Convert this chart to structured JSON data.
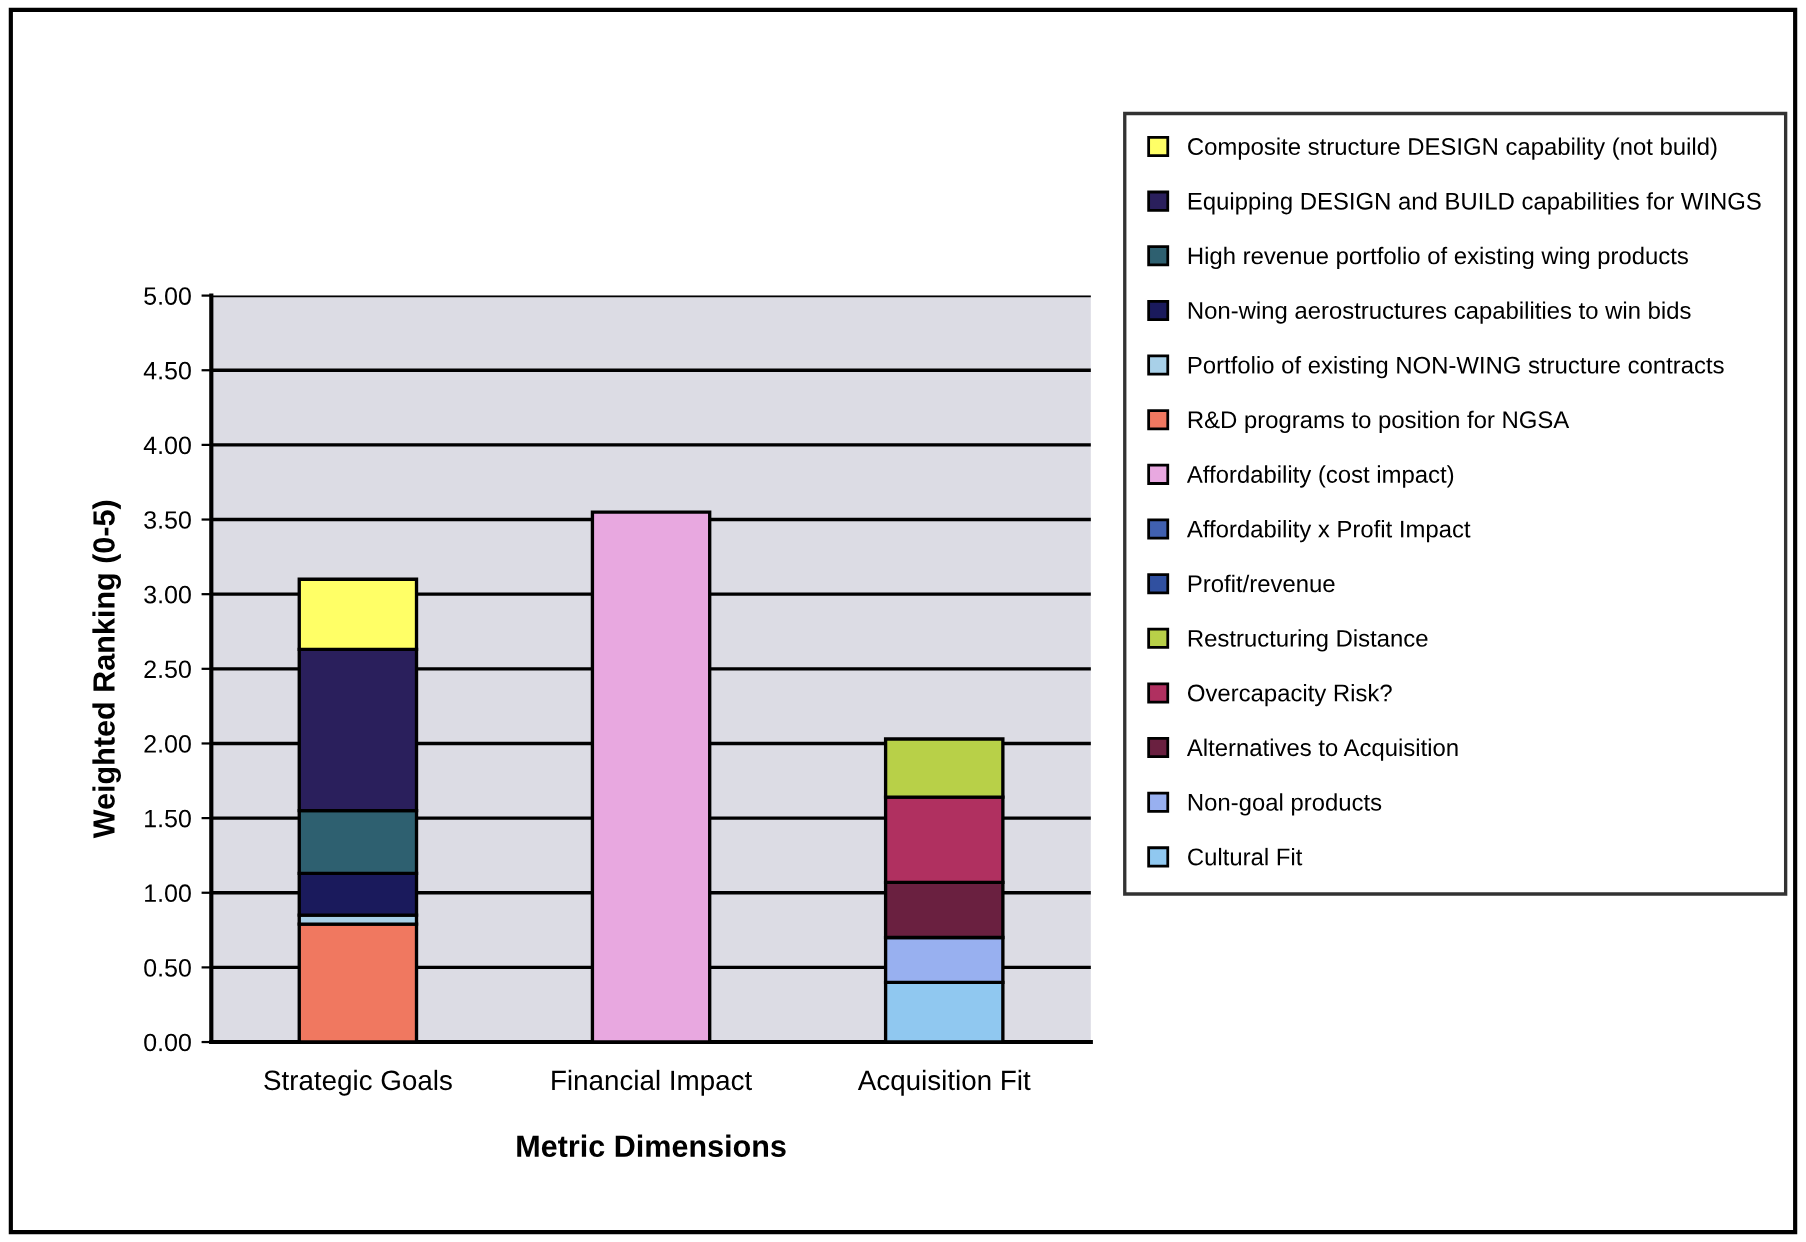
{
  "chart_data": {
    "type": "bar",
    "stacked": true,
    "xlabel": "Metric Dimensions",
    "ylabel": "Weighted Ranking (0-5)",
    "categories": [
      "Strategic Goals",
      "Financial Impact",
      "Acquisition Fit"
    ],
    "series": [
      {
        "name": "Cultural Fit",
        "color": "#90c8f0",
        "values": [
          null,
          null,
          0.4
        ]
      },
      {
        "name": "Non-goal products",
        "color": "#98b0f0",
        "values": [
          null,
          null,
          0.3
        ]
      },
      {
        "name": "Alternatives to Acquisition",
        "color": "#6a2040",
        "values": [
          null,
          null,
          0.37
        ]
      },
      {
        "name": "Overcapacity Risk?",
        "color": "#b03060",
        "values": [
          null,
          null,
          0.57
        ]
      },
      {
        "name": "Restructuring Distance",
        "color": "#b8d048",
        "values": [
          null,
          null,
          0.39
        ]
      },
      {
        "name": "Profit/revenue",
        "color": "#3050a0",
        "values": [
          null,
          null,
          null
        ]
      },
      {
        "name": "Affordability x Profit Impact",
        "color": "#4060b0",
        "values": [
          null,
          null,
          null
        ]
      },
      {
        "name": "Affordability (cost impact)",
        "color": "#e8a8e0",
        "values": [
          null,
          3.55,
          null
        ]
      },
      {
        "name": "R&D programs to position for NGSA",
        "color": "#f07860",
        "values": [
          0.79,
          null,
          null
        ]
      },
      {
        "name": "Portfolio of existing NON-WING structure contracts",
        "color": "#a8d0e8",
        "values": [
          0.06,
          null,
          null
        ]
      },
      {
        "name": "Non-wing aerostructures capabilities to win bids",
        "color": "#1a1a5c",
        "values": [
          0.28,
          null,
          null
        ]
      },
      {
        "name": "High revenue portfolio of existing wing products",
        "color": "#2e6070",
        "values": [
          0.42,
          null,
          null
        ]
      },
      {
        "name": "Equipping DESIGN and BUILD capabilities for WINGS",
        "color": "#2a1f5c",
        "values": [
          1.08,
          null,
          null
        ]
      },
      {
        "name": "Composite structure DESIGN capability (not build)",
        "color": "#ffff66",
        "values": [
          0.47,
          null,
          null
        ]
      }
    ],
    "ylim": [
      0,
      5
    ],
    "yticks": [
      {
        "value": 0,
        "label": "0.00"
      },
      {
        "value": 0.5,
        "label": "0.50"
      },
      {
        "value": 1,
        "label": "1.00"
      },
      {
        "value": 1.5,
        "label": "1.50"
      },
      {
        "value": 2,
        "label": "2.00"
      },
      {
        "value": 2.5,
        "label": "2.50"
      },
      {
        "value": 3,
        "label": "3.00"
      },
      {
        "value": 3.5,
        "label": "3.50"
      },
      {
        "value": 4,
        "label": "4.00"
      },
      {
        "value": 4.5,
        "label": "4.50"
      },
      {
        "value": 5,
        "label": "5.00"
      }
    ],
    "grid": "y",
    "legend": "right"
  }
}
